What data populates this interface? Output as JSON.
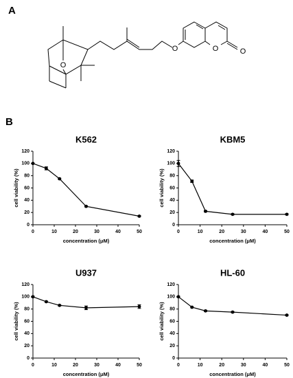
{
  "panels": {
    "a": "A",
    "b": "B"
  },
  "structure": {
    "atoms": [
      "O",
      "O",
      "O",
      "O"
    ]
  },
  "chart_data": [
    {
      "type": "line",
      "title": "K562",
      "x_label": "concentration (μM)",
      "y_label": "cell viability (%)",
      "x": [
        0,
        6.25,
        12.5,
        25,
        50
      ],
      "series": [
        {
          "color": "#000000",
          "values": [
            100,
            92,
            75,
            30,
            14
          ],
          "errors": [
            0,
            2.5,
            1,
            1,
            1
          ]
        }
      ],
      "xlim": [
        0,
        50
      ],
      "xticks": [
        0,
        10,
        20,
        30,
        40,
        50
      ],
      "ylim": [
        0,
        120
      ],
      "yticks": [
        0,
        20,
        40,
        60,
        80,
        100,
        120
      ]
    },
    {
      "type": "line",
      "title": "KBM5",
      "x_label": "concentration (μM)",
      "y_label": "cell viability (%)",
      "x": [
        0,
        6.25,
        12.5,
        25,
        50
      ],
      "series": [
        {
          "color": "#000000",
          "values": [
            100,
            71,
            22,
            17,
            17
          ],
          "errors": [
            5,
            2,
            1,
            1,
            1
          ]
        }
      ],
      "xlim": [
        0,
        50
      ],
      "xticks": [
        0,
        10,
        20,
        30,
        40,
        50
      ],
      "ylim": [
        0,
        120
      ],
      "yticks": [
        0,
        20,
        40,
        60,
        80,
        100,
        120
      ]
    },
    {
      "type": "line",
      "title": "U937",
      "x_label": "concentration (μM)",
      "y_label": "cell viability (%)",
      "x": [
        0,
        6.25,
        12.5,
        25,
        50
      ],
      "series": [
        {
          "color": "#000000",
          "values": [
            100,
            92,
            86,
            82,
            84
          ],
          "errors": [
            1,
            1,
            1,
            3,
            3
          ]
        }
      ],
      "xlim": [
        0,
        50
      ],
      "xticks": [
        0,
        10,
        20,
        30,
        40,
        50
      ],
      "ylim": [
        0,
        120
      ],
      "yticks": [
        0,
        20,
        40,
        60,
        80,
        100,
        120
      ]
    },
    {
      "type": "line",
      "title": "HL-60",
      "x_label": "concentration (μM)",
      "y_label": "cell viability (%)",
      "x": [
        0,
        6.25,
        12.5,
        25,
        50
      ],
      "series": [
        {
          "color": "#000000",
          "values": [
            100,
            83,
            77,
            75,
            70
          ],
          "errors": [
            1,
            1,
            1,
            1,
            1
          ]
        }
      ],
      "xlim": [
        0,
        50
      ],
      "xticks": [
        0,
        10,
        20,
        30,
        40,
        50
      ],
      "ylim": [
        0,
        120
      ],
      "yticks": [
        0,
        20,
        40,
        60,
        80,
        100,
        120
      ]
    }
  ]
}
